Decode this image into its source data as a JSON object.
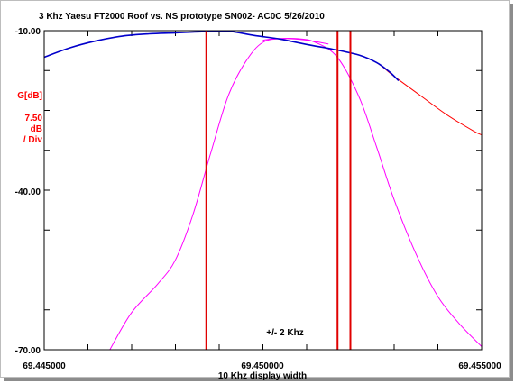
{
  "chart_data": {
    "type": "line",
    "title": "3 Khz Yaesu FT2000 Roof vs. NS prototype SN002- AC0C 5/26/2010",
    "xlabel": "10 Khz display width",
    "x_tick_labels": [
      "69.445000",
      "69.450000",
      "69.455000"
    ],
    "xlim": [
      69.445,
      69.455
    ],
    "ylim": [
      -70,
      -10
    ],
    "y_tick_labels": [
      "-10.00",
      "-40.00",
      "-70.00"
    ],
    "y_axis_caption": [
      "G[dB]",
      "7.50",
      "dB",
      "/ Div"
    ],
    "y_div": 7.5,
    "annotation": "+/- 2 Khz",
    "grid": "ticks only",
    "colors": {
      "axis": "#000000",
      "red_trace": "#ff0000",
      "blue_trace": "#0000cc",
      "magenta_trace": "#ff00ff",
      "marker_lines": "#e00000",
      "y_caption": "#ff0000"
    },
    "marker_x": [
      69.448706,
      69.451706,
      69.452
    ],
    "series": [
      {
        "key": "red",
        "x": [
          69.445,
          69.4456,
          69.4462,
          69.4468,
          69.4474,
          69.448,
          69.4486,
          69.4492,
          69.4498,
          69.4504,
          69.451,
          69.4516,
          69.4522,
          69.4526,
          69.453,
          69.4536,
          69.4542,
          69.4548,
          69.455
        ],
        "y": [
          -15.0,
          -13.2,
          -11.9,
          -11.0,
          -10.6,
          -10.4,
          -10.2,
          -10.1,
          -10.9,
          -11.6,
          -12.6,
          -13.5,
          -14.6,
          -16.0,
          -18.6,
          -22.2,
          -25.8,
          -28.8,
          -29.6
        ]
      },
      {
        "key": "blue",
        "x": [
          69.445,
          69.4456,
          69.4462,
          69.4468,
          69.4474,
          69.448,
          69.4486,
          69.4492,
          69.4498,
          69.4504,
          69.451,
          69.4516,
          69.4522,
          69.4526,
          69.4529,
          69.4531
        ],
        "y": [
          -15.0,
          -13.2,
          -11.9,
          -11.0,
          -10.6,
          -10.4,
          -10.2,
          -10.1,
          -10.9,
          -11.6,
          -12.6,
          -13.5,
          -14.6,
          -16.0,
          -17.8,
          -19.4
        ]
      },
      {
        "key": "magenta_rising",
        "x": [
          69.4465,
          69.447,
          69.4476,
          69.448,
          69.4484,
          69.4488,
          69.4492,
          69.4496,
          69.45,
          69.4505,
          69.451,
          69.4515
        ],
        "y": [
          -70.0,
          -63.0,
          -57.6,
          -53.1,
          -44.6,
          -33.2,
          -22.4,
          -15.9,
          -12.2,
          -11.5,
          -11.8,
          -12.5
        ]
      },
      {
        "key": "magenta_falling",
        "x": [
          69.45,
          69.4503,
          69.4508,
          69.4512,
          69.4517,
          69.4522,
          69.4526,
          69.453,
          69.4535,
          69.454,
          69.4545,
          69.455
        ],
        "y": [
          -11.8,
          -11.5,
          -11.5,
          -12.2,
          -15.0,
          -22.5,
          -31.9,
          -41.8,
          -52.0,
          -60.0,
          -65.2,
          -69.4
        ]
      }
    ]
  }
}
